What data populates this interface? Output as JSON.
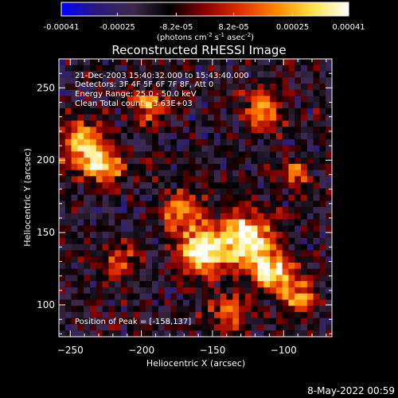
{
  "colorbar": {
    "ticks": [
      "-0.00041",
      "-0.00025",
      "-8.2e-05",
      "8.2e-05",
      "0.00025",
      "0.00041"
    ],
    "tick_values": [
      -0.00041,
      -0.00025,
      -8.2e-05,
      8.2e-05,
      0.00025,
      0.00041
    ],
    "range": [
      -0.00041,
      0.00041
    ],
    "units_main": "(photons cm",
    "units_exp1": "-2",
    "units_mid1": " s",
    "units_exp2": "-1",
    "units_mid2": " asec",
    "units_exp3": "-2",
    "units_end": ")",
    "colormap": [
      "#0000ff",
      "#2a1a7a",
      "#3c2a4a",
      "#000000",
      "#8a0000",
      "#e03000",
      "#ff8800",
      "#ffe24a",
      "#ffffff"
    ]
  },
  "image": {
    "title": "Reconstructed RHESSI Image",
    "info": [
      "21-Dec-2003 15:40:32.000 to 15:43:40.000",
      "Detectors: 3F 4F 5F 6F 7F 8F, Att 0",
      "Energy Range: 25.0 - 50.0 keV",
      "Clean     Total counts: 3.63E+03"
    ],
    "peak_label": "Position of Peak = [-158,137]"
  },
  "chart_data": {
    "type": "heatmap",
    "title": "Reconstructed RHESSI Image",
    "xlabel": "Heliocentric X (arcsec)",
    "ylabel": "Heliocentric Y (arcsec)",
    "xlim": [
      -258,
      -66
    ],
    "ylim": [
      78,
      270
    ],
    "x_ticks": [
      -250,
      -200,
      -150,
      -100
    ],
    "y_ticks": [
      100,
      150,
      200,
      250
    ],
    "x_tick_labels": [
      "−250",
      "−200",
      "−150",
      "−100"
    ],
    "y_tick_labels": [
      "100",
      "150",
      "200",
      "250"
    ],
    "peak": [
      -158,
      137
    ],
    "sources": [
      {
        "x": -158,
        "y": 137,
        "amp": 1.0,
        "sigma": 10
      },
      {
        "x": -127,
        "y": 145,
        "amp": 0.9,
        "sigma": 13
      },
      {
        "x": -108,
        "y": 122,
        "amp": 0.75,
        "sigma": 10
      },
      {
        "x": -90,
        "y": 105,
        "amp": 0.55,
        "sigma": 8
      },
      {
        "x": -172,
        "y": 165,
        "amp": 0.55,
        "sigma": 10
      },
      {
        "x": -240,
        "y": 210,
        "amp": 0.65,
        "sigma": 12
      },
      {
        "x": -225,
        "y": 195,
        "amp": 0.5,
        "sigma": 10
      },
      {
        "x": -195,
        "y": 238,
        "amp": 0.5,
        "sigma": 9
      },
      {
        "x": -115,
        "y": 235,
        "amp": 0.6,
        "sigma": 9
      },
      {
        "x": -92,
        "y": 190,
        "amp": 0.45,
        "sigma": 8
      },
      {
        "x": -215,
        "y": 130,
        "amp": 0.35,
        "sigma": 9
      },
      {
        "x": -140,
        "y": 95,
        "amp": 0.45,
        "sigma": 9
      }
    ]
  },
  "footer": {
    "date": "8-May-2022 00:59"
  }
}
